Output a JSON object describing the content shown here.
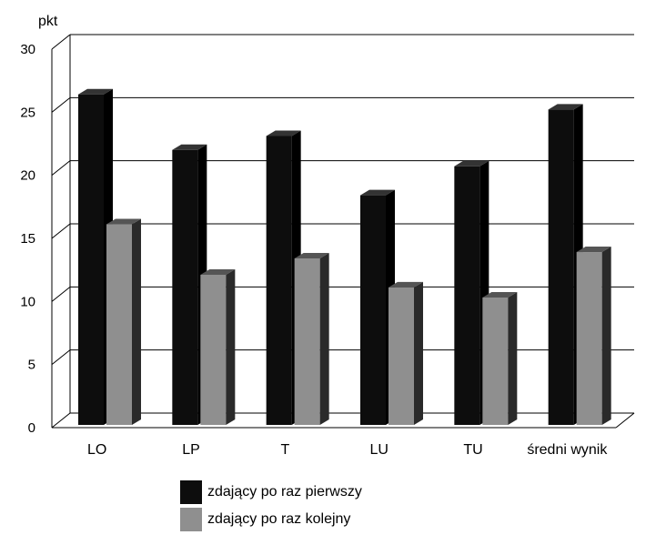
{
  "chart_data": {
    "type": "bar",
    "ylabel": "pkt",
    "ylim": [
      0,
      30
    ],
    "yticks": [
      0,
      5,
      10,
      15,
      20,
      25,
      30
    ],
    "grid": true,
    "legend_position": "bottom",
    "categories": [
      "LO",
      "LP",
      "T",
      "LU",
      "TU",
      "średni wynik"
    ],
    "series": [
      {
        "name": "zdający po raz pierwszy",
        "color": "#0d0d0d",
        "values": [
          26.2,
          21.8,
          22.9,
          18.2,
          20.5,
          25.0
        ]
      },
      {
        "name": "zdający po raz kolejny",
        "color": "#8f8f8f",
        "values": [
          15.9,
          11.9,
          13.2,
          10.9,
          10.1,
          13.7
        ]
      }
    ]
  }
}
